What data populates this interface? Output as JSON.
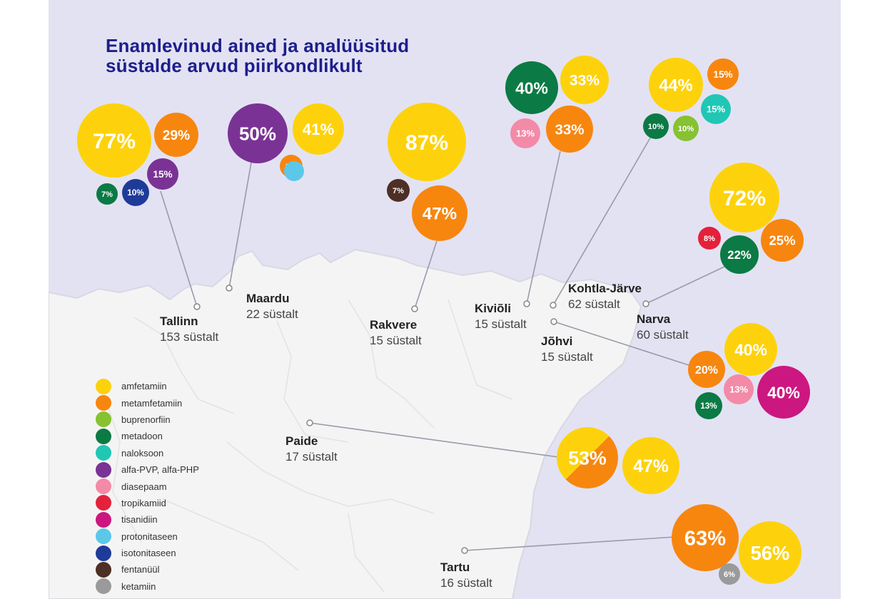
{
  "title_line1": "Enamlevinud ained ja analüüsitud",
  "title_line2": "süstalde arvud piirkondlikult",
  "colors": {
    "amfetamiin": "#fdd20c",
    "metamfetamiin": "#f7860f",
    "buprenorfiin": "#86c232",
    "metadoon": "#0b7a44",
    "naloksoon": "#1fc7b4",
    "alfa-PVP, alfa-PHP": "#7a3394",
    "diasepaam": "#f38aa8",
    "tropikamiid": "#e4213a",
    "tisanidiin": "#cc1780",
    "protonitaseen": "#5bc8ea",
    "isotonitaseen": "#1f3b99",
    "fentanüül": "#4e2f25",
    "ketamiin": "#9a9a9a"
  },
  "legend": [
    "amfetamiin",
    "metamfetamiin",
    "buprenorfiin",
    "metadoon",
    "naloksoon",
    "alfa-PVP, alfa-PHP",
    "diasepaam",
    "tropikamiid",
    "tisanidiin",
    "protonitaseen",
    "isotonitaseen",
    "fentanüül",
    "ketamiin"
  ],
  "cities": [
    {
      "name": "Tallinn",
      "count": "153 süstalt",
      "substances": [
        {
          "substance": "amfetamiin",
          "label": "77%"
        },
        {
          "substance": "metamfetamiin",
          "label": "29%"
        },
        {
          "substance": "alfa-PVP, alfa-PHP",
          "label": "15%"
        },
        {
          "substance": "isotonitaseen",
          "label": "10%"
        },
        {
          "substance": "metadoon",
          "label": "7%"
        }
      ]
    },
    {
      "name": "Maardu",
      "count": "22 süstalt",
      "substances": [
        {
          "substance": "alfa-PVP, alfa-PHP",
          "label": "50%"
        },
        {
          "substance": "amfetamiin",
          "label": "41%"
        },
        {
          "substance": "metamfetamiin",
          "label": "9%"
        },
        {
          "substance": "protonitaseen",
          "label": ""
        }
      ]
    },
    {
      "name": "Rakvere",
      "count": "15 süstalt",
      "substances": [
        {
          "substance": "amfetamiin",
          "label": "87%"
        },
        {
          "substance": "metamfetamiin",
          "label": "47%"
        },
        {
          "substance": "fentanüül",
          "label": "7%"
        }
      ]
    },
    {
      "name": "Kiviõli",
      "count": "15 süstalt",
      "substances": [
        {
          "substance": "metadoon",
          "label": "40%"
        },
        {
          "substance": "amfetamiin",
          "label": "33%"
        },
        {
          "substance": "metamfetamiin",
          "label": "33%"
        },
        {
          "substance": "diasepaam",
          "label": "13%"
        }
      ]
    },
    {
      "name": "Kohtla-Järve",
      "count": "62 süstalt",
      "substances": [
        {
          "substance": "amfetamiin",
          "label": "44%"
        },
        {
          "substance": "metamfetamiin",
          "label": "15%"
        },
        {
          "substance": "naloksoon",
          "label": "15%"
        },
        {
          "substance": "metadoon",
          "label": "10%"
        },
        {
          "substance": "buprenorfiin",
          "label": "10%"
        }
      ]
    },
    {
      "name": "Narva",
      "count": "60 süstalt",
      "substances": [
        {
          "substance": "amfetamiin",
          "label": "72%"
        },
        {
          "substance": "metamfetamiin",
          "label": "25%"
        },
        {
          "substance": "metadoon",
          "label": "22%"
        },
        {
          "substance": "tropikamiid",
          "label": "8%"
        }
      ]
    },
    {
      "name": "Jõhvi",
      "count": "15 süstalt",
      "substances": [
        {
          "substance": "amfetamiin",
          "label": "40%"
        },
        {
          "substance": "tisanidiin",
          "label": "40%"
        },
        {
          "substance": "metamfetamiin",
          "label": "20%"
        },
        {
          "substance": "diasepaam",
          "label": "13%"
        },
        {
          "substance": "metadoon",
          "label": "13%"
        }
      ]
    },
    {
      "name": "Paide",
      "count": "17 süstalt",
      "substances": [
        {
          "substance": "amfetamiin / metamfetamiin",
          "label": "53%"
        },
        {
          "substance": "amfetamiin",
          "label": "47%"
        }
      ]
    },
    {
      "name": "Tartu",
      "count": "16 süstalt",
      "substances": [
        {
          "substance": "metamfetamiin",
          "label": "63%"
        },
        {
          "substance": "amfetamiin",
          "label": "56%"
        },
        {
          "substance": "ketamiin",
          "label": "6%"
        }
      ]
    }
  ]
}
